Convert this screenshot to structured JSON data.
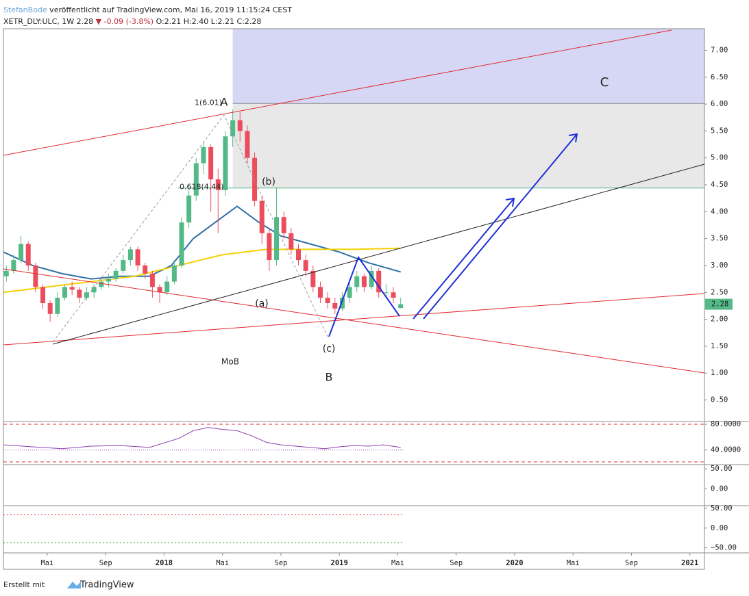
{
  "header": {
    "author": "StefanBode",
    "published": " veröffentlicht auf TradingView.com, Mai 16, 2019 11:15:24 CEST",
    "symbol": "XETR_DLY:ULC, 1W 2.28",
    "change": "▼ -0.09 (-3.8%)",
    "ohlc": "O:2.21 H:2.40 L:2.21 C:2.28"
  },
  "chart_data": {
    "type": "candlestick",
    "x": [
      1.2,
      1.7,
      2.2,
      2.7,
      3.2,
      3.7,
      4.2,
      4.7,
      5.2,
      5.7,
      6.2,
      6.7,
      7.2,
      7.7,
      8.2,
      8.7,
      9.2,
      9.7,
      10.2,
      10.7,
      11.2,
      11.7,
      12.2,
      12.7,
      13.2,
      13.7,
      14.2,
      14.7,
      15.2,
      15.7,
      16.2,
      16.7,
      17.2,
      17.7,
      18.2,
      18.7,
      19.2,
      19.7,
      20.2,
      20.7,
      21.2,
      21.7,
      22.2,
      22.7,
      23.2,
      23.7,
      24.2,
      24.7,
      25.2,
      25.7,
      26.2,
      26.7,
      27.2,
      27.7,
      28.2
    ],
    "open": [
      2.8,
      2.9,
      3.1,
      3.4,
      3.0,
      2.6,
      2.3,
      2.1,
      2.4,
      2.6,
      2.55,
      2.4,
      2.5,
      2.6,
      2.7,
      2.75,
      2.9,
      3.1,
      3.3,
      3.0,
      2.85,
      2.6,
      2.5,
      2.7,
      3.0,
      3.8,
      4.3,
      4.9,
      5.2,
      4.6,
      4.4,
      5.4,
      5.7,
      5.5,
      5.0,
      4.2,
      3.6,
      3.1,
      3.9,
      3.6,
      3.3,
      3.1,
      2.9,
      2.6,
      2.4,
      2.3,
      2.2,
      2.4,
      2.6,
      2.8,
      2.6,
      2.9,
      2.5,
      2.5,
      2.21
    ],
    "high": [
      3.0,
      3.2,
      3.55,
      3.45,
      3.05,
      2.65,
      2.35,
      2.5,
      2.65,
      2.7,
      2.6,
      2.6,
      2.65,
      2.75,
      2.85,
      2.95,
      3.2,
      3.35,
      3.35,
      3.05,
      2.9,
      2.65,
      2.8,
      3.1,
      3.9,
      4.4,
      5.0,
      5.3,
      5.25,
      4.8,
      5.5,
      5.9,
      5.85,
      5.6,
      5.1,
      4.3,
      3.7,
      4.45,
      4.0,
      3.7,
      3.4,
      3.2,
      3.0,
      2.7,
      2.5,
      2.4,
      2.5,
      2.7,
      2.9,
      2.85,
      3.0,
      2.95,
      2.65,
      2.6,
      2.4
    ],
    "low": [
      2.7,
      2.85,
      3.05,
      2.9,
      2.5,
      2.2,
      1.95,
      2.05,
      2.35,
      2.45,
      2.3,
      2.35,
      2.4,
      2.55,
      2.6,
      2.7,
      2.85,
      3.0,
      2.9,
      2.75,
      2.4,
      2.3,
      2.45,
      2.65,
      2.95,
      3.7,
      4.2,
      4.7,
      4.0,
      3.6,
      4.3,
      5.2,
      5.3,
      4.9,
      4.1,
      3.4,
      2.9,
      3.0,
      3.5,
      3.2,
      3.0,
      2.8,
      2.5,
      2.3,
      2.2,
      2.1,
      2.15,
      2.3,
      2.5,
      2.5,
      2.55,
      2.4,
      2.4,
      2.3,
      2.21
    ],
    "close": [
      2.9,
      3.1,
      3.4,
      3.0,
      2.6,
      2.3,
      2.1,
      2.4,
      2.6,
      2.55,
      2.4,
      2.5,
      2.6,
      2.7,
      2.75,
      2.9,
      3.1,
      3.3,
      3.0,
      2.85,
      2.6,
      2.5,
      2.7,
      3.0,
      3.8,
      4.3,
      4.9,
      5.2,
      4.6,
      4.4,
      5.4,
      5.7,
      5.5,
      5.0,
      4.2,
      3.6,
      3.1,
      3.9,
      3.6,
      3.3,
      3.1,
      2.9,
      2.6,
      2.4,
      2.3,
      2.2,
      2.4,
      2.6,
      2.8,
      2.6,
      2.9,
      2.5,
      2.5,
      2.4,
      2.28
    ],
    "up_color": "#53b987",
    "down_color": "#eb4d5c",
    "moving_averages": [
      {
        "color": "#2e6fa8",
        "x": [
          1,
          3,
          5,
          7,
          9,
          11,
          12.5,
          14,
          16,
          17,
          18.5,
          20,
          22,
          24,
          26,
          28.2
        ],
        "values": [
          3.25,
          3.0,
          2.85,
          2.75,
          2.8,
          2.8,
          3.0,
          3.5,
          3.9,
          4.1,
          3.8,
          3.55,
          3.4,
          3.25,
          3.05,
          2.88
        ]
      },
      {
        "color": "#f5d000",
        "x": [
          1,
          4,
          7,
          10,
          13,
          16,
          19,
          22,
          25,
          28.2
        ],
        "values": [
          2.5,
          2.6,
          2.7,
          2.8,
          3.0,
          3.2,
          3.3,
          3.3,
          3.3,
          3.32
        ]
      }
    ],
    "fib": [
      {
        "value": 6.01,
        "label": "1(6.01)"
      },
      {
        "value": 4.44,
        "label": "0.618(4.44)"
      }
    ],
    "last_price": 2.28,
    "xlim": [
      1,
      49
    ],
    "xticks": [
      {
        "value": 4,
        "label": "Mai"
      },
      {
        "value": 8,
        "label": "Sep"
      },
      {
        "value": 12,
        "label": "2018"
      },
      {
        "value": 16,
        "label": "Mai"
      },
      {
        "value": 20,
        "label": "Sep"
      },
      {
        "value": 24,
        "label": "2019"
      },
      {
        "value": 28,
        "label": "Mai"
      },
      {
        "value": 32,
        "label": "Sep"
      },
      {
        "value": 36,
        "label": "2020"
      },
      {
        "value": 40,
        "label": "Mai"
      },
      {
        "value": 44,
        "label": "Sep"
      },
      {
        "value": 48,
        "label": "2021"
      }
    ],
    "ylim": [
      0.1,
      7.4
    ],
    "yticks": [
      {
        "value": 0.5,
        "label": "0.50"
      },
      {
        "value": 1,
        "label": "1.00"
      },
      {
        "value": 1.5,
        "label": "1.50"
      },
      {
        "value": 2,
        "label": "2.00"
      },
      {
        "value": 2.5,
        "label": "2.50"
      },
      {
        "value": 3,
        "label": "3.00"
      },
      {
        "value": 3.5,
        "label": "3.50"
      },
      {
        "value": 4,
        "label": "4.00"
      },
      {
        "value": 4.5,
        "label": "4.50"
      },
      {
        "value": 5,
        "label": "5.00"
      },
      {
        "value": 5.5,
        "label": "5.50"
      },
      {
        "value": 6,
        "label": "6.00"
      },
      {
        "value": 6.5,
        "label": "6.50"
      },
      {
        "value": 7,
        "label": "7.00"
      }
    ],
    "annotations": [
      "A",
      "(b)",
      "(a)",
      "(c)",
      "B",
      "C",
      "MoB"
    ],
    "indicators": [
      {
        "ylim": [
          18.4,
          83.2
        ],
        "yticks": [
          {
            "value": 80,
            "label": "80.0000"
          },
          {
            "value": 40,
            "label": "40.0000"
          }
        ],
        "color": "#8e3fb0",
        "x": [
          1,
          3,
          5,
          7,
          9,
          11,
          13,
          14,
          15,
          16,
          17,
          18,
          19,
          20,
          21,
          22,
          23,
          24,
          25,
          26,
          27,
          28.2
        ],
        "values": [
          48,
          45,
          42,
          46,
          47,
          44,
          58,
          70,
          75,
          72,
          70,
          62,
          52,
          48,
          46,
          44,
          42,
          45,
          47,
          46,
          48,
          44
        ]
      },
      {
        "ylim": [
          -39.7,
          58.6
        ],
        "yticks": [
          {
            "value": 50,
            "label": "50.00"
          },
          {
            "value": 0,
            "label": "0.00"
          }
        ]
      },
      {
        "ylim": [
          -61,
          55
        ],
        "yticks": [
          {
            "value": 50,
            "label": "50.00"
          },
          {
            "value": 0,
            "label": "0.00"
          },
          {
            "value": -50,
            "label": "−50.00"
          }
        ]
      }
    ]
  },
  "footer": {
    "made": "Erstellt mit",
    "brand": "TradingView"
  }
}
